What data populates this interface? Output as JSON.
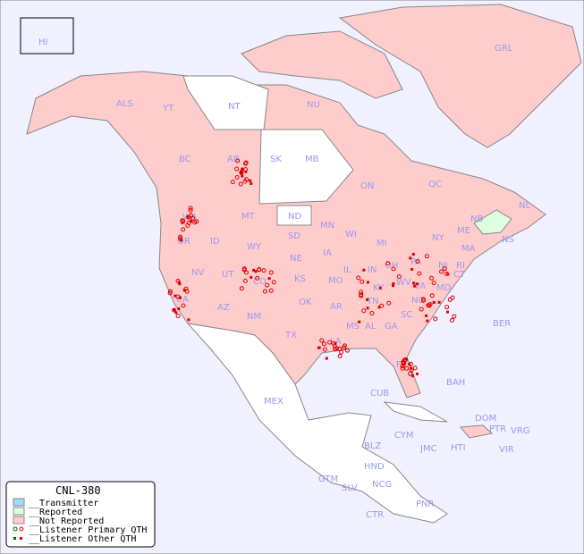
{
  "map": {
    "colors": {
      "ocean": "#f0f0ff",
      "not_reported": "#ffcccc",
      "reported": "#ddffdd",
      "transmitter": "#99ddff",
      "no_data": "#ffffff",
      "border": "#888888",
      "label": "#9999ee",
      "listener": "#dd0000"
    },
    "inset_label": "HI",
    "labels": {
      "ALS": "ALS",
      "YT": "YT",
      "NT": "NT",
      "NU": "NU",
      "GRL": "GRL",
      "BC": "BC",
      "AB": "AB",
      "SK": "SK",
      "MB": "MB",
      "ON": "ON",
      "QC": "QC",
      "NL": "NL",
      "NS": "NS",
      "NB": "NB",
      "WA": "WA",
      "MT": "MT",
      "ND": "ND",
      "MN": "MN",
      "WI": "WI",
      "MI": "MI",
      "OR": "OR",
      "ID": "ID",
      "WY": "WY",
      "SD": "SD",
      "NE": "NE",
      "IA": "IA",
      "IL": "IL",
      "IN": "IN",
      "OH": "OH",
      "PA": "PA",
      "NY": "NY",
      "ME": "ME",
      "MA": "MA",
      "CT": "CT",
      "RI": "RI",
      "NJ": "NJ",
      "MD": "MD",
      "NV": "NV",
      "UT": "UT",
      "CO": "CO",
      "KS": "KS",
      "MO": "MO",
      "KY": "KY",
      "WV": "WV",
      "VA": "VA",
      "CA": "CA",
      "AZ": "AZ",
      "NM": "NM",
      "OK": "OK",
      "AR": "AR",
      "TN": "TN",
      "NC": "NC",
      "SC": "SC",
      "MS": "MS",
      "AL": "AL",
      "GA": "GA",
      "TX": "TX",
      "LA": "LA",
      "FL": "FL",
      "MEX": "MEX",
      "CUB": "CUB",
      "BAH": "BAH",
      "BER": "BER",
      "DOM": "DOM",
      "PTR": "PTR",
      "VRG": "VRG",
      "CYM": "CYM",
      "JMC": "JMC",
      "HTI": "HTI",
      "VIR": "VIR",
      "BLZ": "BLZ",
      "HND": "HND",
      "GTM": "GTM",
      "SLV": "SLV",
      "NCG": "NCG",
      "CTR": "CTR",
      "PNR": "PNR"
    }
  },
  "legend": {
    "title": "CNL-380",
    "items": [
      "__Transmitter",
      "__Reported",
      "__Not Reported",
      "__Listener Primary QTH",
      "__Listener Other QTH"
    ]
  }
}
